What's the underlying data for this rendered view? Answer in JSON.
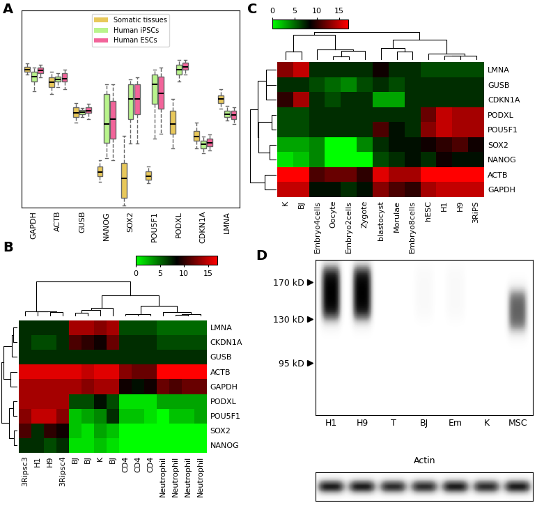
{
  "chart_data": [
    {
      "title": "A",
      "type": "box",
      "categories": [
        "GAPDH",
        "ACTB",
        "GUSB",
        "NANOG",
        "SOX2",
        "POU5F1",
        "PODXL",
        "CDKN1A",
        "LMNA"
      ],
      "ylim": [
        0,
        20
      ],
      "tick_labels": "x",
      "legend": "upper center",
      "series": [
        {
          "name": "Somatic tissues",
          "color": "#e8c85a",
          "stats": [
            {
              "median": 14.0,
              "q1": 13.8,
              "q3": 14.3,
              "whislo": 13.5,
              "whishi": 14.6
            },
            {
              "median": 12.7,
              "q1": 12.2,
              "q3": 13.2,
              "whislo": 11.5,
              "whishi": 13.8
            },
            {
              "median": 9.6,
              "q1": 9.2,
              "q3": 10.2,
              "whislo": 8.6,
              "whishi": 10.6
            },
            {
              "median": 3.6,
              "q1": 3.2,
              "q3": 4.2,
              "whislo": 2.6,
              "whishi": 4.8
            },
            {
              "median": 3.0,
              "q1": 1.0,
              "q3": 4.5,
              "whislo": 0.2,
              "whishi": 7.3
            },
            {
              "median": 3.2,
              "q1": 2.8,
              "q3": 3.7,
              "whislo": 2.5,
              "whishi": 4.2
            },
            {
              "median": 8.5,
              "q1": 7.5,
              "q3": 9.8,
              "whislo": 6.0,
              "whishi": 11.0
            },
            {
              "median": 7.2,
              "q1": 6.8,
              "q3": 7.8,
              "whislo": 6.0,
              "whishi": 8.6
            },
            {
              "median": 11.0,
              "q1": 10.6,
              "q3": 11.4,
              "whislo": 10.0,
              "whishi": 12.0
            }
          ]
        },
        {
          "name": "Human iPSCs",
          "color": "#b9f48c",
          "stats": [
            {
              "median": 13.3,
              "q1": 12.8,
              "q3": 13.8,
              "whislo": 11.8,
              "whishi": 14.2
            },
            {
              "median": 13.0,
              "q1": 12.8,
              "q3": 13.3,
              "whislo": 12.2,
              "whishi": 13.6
            },
            {
              "median": 9.7,
              "q1": 9.5,
              "q3": 9.9,
              "whislo": 9.2,
              "whishi": 10.1
            },
            {
              "median": 8.5,
              "q1": 6.6,
              "q3": 11.5,
              "whislo": 5.0,
              "whishi": 12.5
            },
            {
              "median": 11.0,
              "q1": 9.0,
              "q3": 12.5,
              "whislo": 6.5,
              "whishi": 13.0
            },
            {
              "median": 12.5,
              "q1": 10.5,
              "q3": 13.5,
              "whislo": 7.0,
              "whishi": 14.0
            },
            {
              "median": 14.0,
              "q1": 13.5,
              "q3": 14.5,
              "whislo": 12.8,
              "whishi": 15.0
            },
            {
              "median": 6.4,
              "q1": 6.0,
              "q3": 6.8,
              "whislo": 5.5,
              "whishi": 7.2
            },
            {
              "median": 9.5,
              "q1": 9.2,
              "q3": 9.8,
              "whislo": 8.8,
              "whishi": 10.3
            }
          ]
        },
        {
          "name": "Human ESCs",
          "color": "#f2649a",
          "stats": [
            {
              "median": 13.9,
              "q1": 13.6,
              "q3": 14.2,
              "whislo": 13.2,
              "whishi": 14.5
            },
            {
              "median": 13.1,
              "q1": 12.8,
              "q3": 13.6,
              "whislo": 12.0,
              "whishi": 14.0
            },
            {
              "median": 9.8,
              "q1": 9.6,
              "q3": 10.2,
              "whislo": 9.0,
              "whishi": 10.5
            },
            {
              "median": 9.0,
              "q1": 7.0,
              "q3": 10.8,
              "whislo": 4.8,
              "whishi": 12.5
            },
            {
              "median": 11.0,
              "q1": 9.5,
              "q3": 12.5,
              "whislo": 6.5,
              "whishi": 13.2
            },
            {
              "median": 11.6,
              "q1": 10.0,
              "q3": 13.3,
              "whislo": 7.5,
              "whishi": 14.2
            },
            {
              "median": 14.3,
              "q1": 14.0,
              "q3": 14.7,
              "whislo": 13.5,
              "whishi": 15.0
            },
            {
              "median": 6.6,
              "q1": 6.2,
              "q3": 7.0,
              "whislo": 5.8,
              "whishi": 7.4
            },
            {
              "median": 9.4,
              "q1": 9.0,
              "q3": 9.8,
              "whislo": 8.5,
              "whishi": 10.2
            }
          ]
        }
      ]
    },
    {
      "title": "B",
      "type": "heatmap",
      "rows": [
        "LMNA",
        "CKDN1A",
        "GUSB",
        "ACTB",
        "GAPDH",
        "PODXL",
        "POU5F1",
        "SOX2",
        "NANOG"
      ],
      "columns": [
        "3Ripsc3",
        "H1",
        "H9",
        "3Ripsc4",
        "BJ",
        "BJ",
        "K",
        "BJ",
        "CD4",
        "CD4",
        "CD4",
        "Neutrophil",
        "Neutrophil",
        "Neutrophil",
        "Neutrophil"
      ],
      "cells": [
        [
          7,
          7,
          7,
          7,
          14,
          14,
          13,
          14,
          6,
          6,
          6,
          5,
          5,
          5,
          5
        ],
        [
          7,
          6,
          6,
          7,
          11,
          10,
          9,
          12,
          7,
          7,
          7,
          6,
          6,
          6,
          6
        ],
        [
          7,
          7,
          7,
          7,
          7,
          7,
          7,
          7,
          7,
          7,
          7,
          7,
          7,
          7,
          7
        ],
        [
          16,
          16,
          16,
          16,
          16,
          15,
          16,
          16,
          13,
          12,
          12,
          17,
          17,
          17,
          17
        ],
        [
          14,
          14,
          14,
          14,
          14,
          13,
          14,
          14,
          9,
          8,
          9,
          12,
          11,
          12,
          12
        ],
        [
          14,
          14,
          14,
          14,
          6,
          6,
          8,
          6,
          1,
          1,
          1,
          3,
          3,
          3,
          3
        ],
        [
          13,
          15,
          15,
          13,
          2,
          3,
          4,
          7,
          2,
          2,
          1,
          0,
          2,
          2,
          3
        ],
        [
          11,
          7,
          10,
          9,
          2,
          1,
          3,
          2,
          0,
          0,
          0,
          0,
          0,
          0,
          0
        ],
        [
          7,
          7,
          6,
          7,
          1,
          1,
          2,
          1,
          0,
          0,
          0,
          0,
          0,
          0,
          0
        ]
      ],
      "colorbar": {
        "range": [
          0,
          17
        ],
        "ticks": [
          0,
          5,
          10,
          15
        ],
        "colors": [
          "#00ff00",
          "#000000",
          "#ff0000"
        ]
      }
    },
    {
      "title": "C",
      "type": "heatmap",
      "rows": [
        "LMNA",
        "GUSB",
        "CDKN1A",
        "PODXL",
        "POU5F1",
        "SOX2",
        "NANOG",
        "ACTB",
        "GAPDH"
      ],
      "columns": [
        "K",
        "BJ",
        "Embryo4cells",
        "Oocyte",
        "Embryo2cells",
        "Zygote",
        "blastocyst",
        "Morulae",
        "Embryo8cells",
        "hESC",
        "H1",
        "H9",
        "3RiPS"
      ],
      "cells": [
        [
          13,
          15,
          7,
          7,
          7,
          7,
          9,
          7,
          7,
          6,
          6,
          6,
          6
        ],
        [
          7,
          7,
          6,
          5,
          4,
          6,
          7,
          6,
          7,
          7,
          7,
          7,
          7
        ],
        [
          10,
          14,
          7,
          6,
          7,
          7,
          3,
          3,
          7,
          7,
          7,
          7,
          7
        ],
        [
          6,
          6,
          7,
          7,
          7,
          7,
          7,
          7,
          7,
          12,
          15,
          14,
          14
        ],
        [
          6,
          6,
          7,
          7,
          7,
          7,
          11,
          8,
          7,
          13,
          15,
          14,
          14
        ],
        [
          3,
          3,
          4,
          0,
          0,
          4,
          7,
          8,
          8,
          9,
          10,
          11,
          9
        ],
        [
          1,
          2,
          4,
          0,
          0,
          0,
          6,
          7,
          8,
          7,
          9,
          8,
          8
        ],
        [
          17,
          17,
          11,
          12,
          12,
          10,
          16,
          14,
          14,
          17,
          17,
          17,
          17
        ],
        [
          15,
          15,
          8,
          8,
          7,
          8,
          13,
          11,
          10,
          14,
          15,
          15,
          15
        ]
      ],
      "colorbar": {
        "range": [
          0,
          17
        ],
        "ticks": [
          0,
          5,
          10,
          15
        ],
        "colors": [
          "#00ff00",
          "#000000",
          "#ff0000"
        ]
      }
    },
    {
      "title": "D",
      "type": "blot",
      "categories": [
        "H1",
        "H9",
        "T",
        "BJ",
        "Em",
        "K",
        "MSC"
      ],
      "log": "y",
      "ylim": [
        65,
        200
      ],
      "yticks": [
        {
          "value": 170,
          "label": "170 kD"
        },
        {
          "value": 130,
          "label": "130 kD"
        },
        {
          "value": 95,
          "label": "95 kD"
        }
      ],
      "band_intensity": [
        1.0,
        1.0,
        0.0,
        0.05,
        0.05,
        0.0,
        0.7
      ],
      "band_top": [
        190,
        190,
        190,
        190,
        190,
        190,
        160
      ],
      "band_bottom": [
        130,
        130,
        130,
        130,
        130,
        130,
        120
      ],
      "loading_control": "Actin",
      "loading_intensity": [
        0.9,
        0.9,
        0.85,
        0.85,
        0.9,
        0.85,
        0.9
      ]
    }
  ]
}
